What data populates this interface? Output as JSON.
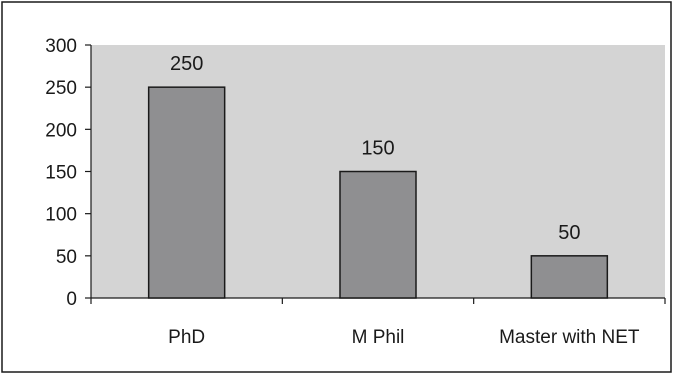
{
  "chart_data": {
    "type": "bar",
    "categories": [
      "PhD",
      "M Phil",
      "Master with NET"
    ],
    "values": [
      250,
      150,
      50
    ],
    "data_labels": [
      "250",
      "150",
      "50"
    ],
    "title": "",
    "xlabel": "",
    "ylabel": "",
    "ylim": [
      0,
      300
    ],
    "yticks": [
      0,
      50,
      100,
      150,
      200,
      250,
      300
    ],
    "ytick_labels": [
      "0",
      "50",
      "100",
      "150",
      "200",
      "250",
      "300"
    ],
    "grid": false,
    "legend": "none",
    "colors": {
      "bar": "#8f8f91",
      "plot_background": "#d4d4d4",
      "frame": "#1a1a1a"
    }
  }
}
